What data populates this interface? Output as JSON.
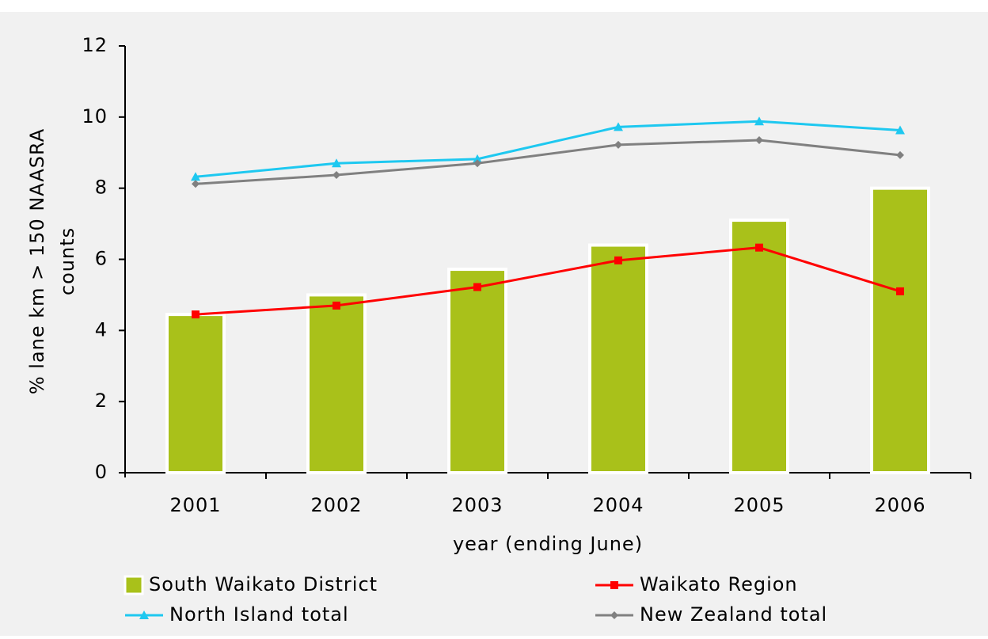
{
  "chart_data": {
    "type": "bar",
    "categories": [
      "2001",
      "2002",
      "2003",
      "2004",
      "2005",
      "2006"
    ],
    "xlabel": "year (ending June)",
    "ylabel": [
      "% lane km > 150 NAASRA",
      "counts"
    ],
    "ylim": [
      0,
      12
    ],
    "yticks": [
      0,
      2,
      4,
      6,
      8,
      10,
      12
    ],
    "series": [
      {
        "name": "South Waikato District",
        "kind": "bar",
        "color": "#a9c11a",
        "values": [
          4.45,
          5.0,
          5.72,
          6.4,
          7.1,
          8.0
        ]
      },
      {
        "name": "Waikato Region",
        "kind": "line",
        "marker": "square",
        "color": "#ff0000",
        "values": [
          4.45,
          4.7,
          5.22,
          5.97,
          6.33,
          5.1
        ]
      },
      {
        "name": "North Island total",
        "kind": "line",
        "marker": "triangle",
        "color": "#1ec8f0",
        "values": [
          8.32,
          8.7,
          8.82,
          9.72,
          9.88,
          9.63
        ]
      },
      {
        "name": "New Zealand total",
        "kind": "line",
        "marker": "diamond",
        "color": "#808080",
        "values": [
          8.12,
          8.37,
          8.7,
          9.22,
          9.35,
          8.93
        ]
      }
    ]
  }
}
